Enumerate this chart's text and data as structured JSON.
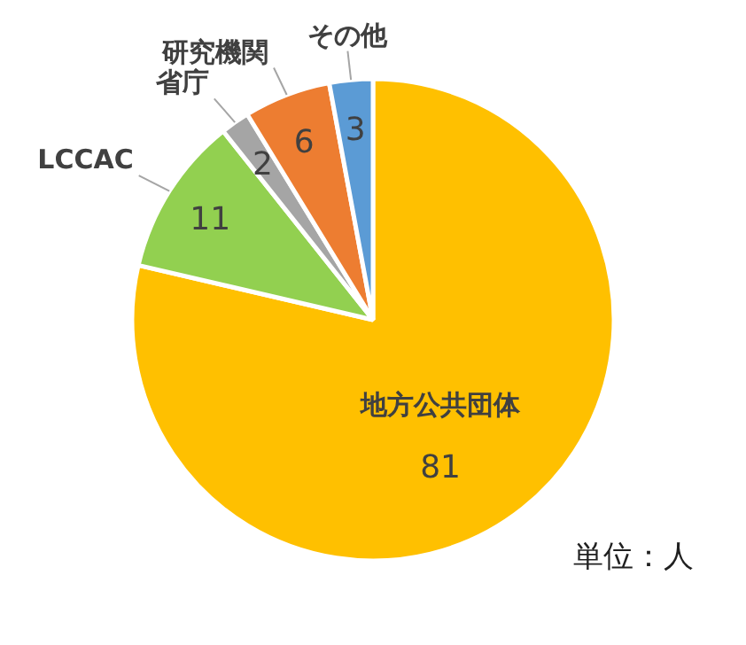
{
  "chart_data": {
    "type": "pie",
    "categories": [
      "地方公共団体",
      "LCCAC",
      "省庁",
      "研究機関",
      "その他"
    ],
    "values": [
      81,
      11,
      2,
      6,
      3
    ],
    "colors": [
      "#ffc000",
      "#92d050",
      "#a5a5a5",
      "#ed7d31",
      "#5b9bd5"
    ],
    "data_labels": true,
    "annotations": [
      "単位：人"
    ]
  }
}
